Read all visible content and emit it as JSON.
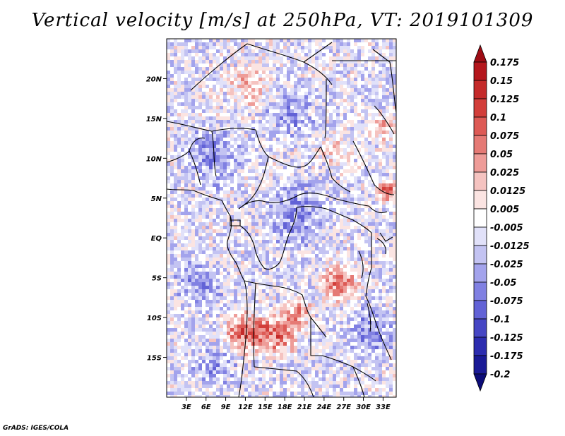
{
  "title": "Vertical velocity [m/s] at 250hPa, VT: 2019101309",
  "credit": "GrADS: IGES/COLA",
  "chart_data": {
    "type": "heatmap",
    "title": "Vertical velocity [m/s] at 250hPa, VT: 2019101309",
    "variable": "Vertical velocity",
    "units": "m/s",
    "level": "250hPa",
    "valid_time": "2019101309",
    "xlim": [
      0,
      35
    ],
    "ylim": [
      -20,
      25
    ],
    "x_ticks": [
      {
        "value": 3,
        "label": "3E"
      },
      {
        "value": 6,
        "label": "6E"
      },
      {
        "value": 9,
        "label": "9E"
      },
      {
        "value": 12,
        "label": "12E"
      },
      {
        "value": 15,
        "label": "15E"
      },
      {
        "value": 18,
        "label": "18E"
      },
      {
        "value": 21,
        "label": "21E"
      },
      {
        "value": 24,
        "label": "24E"
      },
      {
        "value": 27,
        "label": "27E"
      },
      {
        "value": 30,
        "label": "30E"
      },
      {
        "value": 33,
        "label": "33E"
      }
    ],
    "y_ticks": [
      {
        "value": 20,
        "label": "20N"
      },
      {
        "value": 15,
        "label": "15N"
      },
      {
        "value": 10,
        "label": "10N"
      },
      {
        "value": 5,
        "label": "5N"
      },
      {
        "value": 0,
        "label": "EQ"
      },
      {
        "value": -5,
        "label": "5S"
      },
      {
        "value": -10,
        "label": "10S"
      },
      {
        "value": -15,
        "label": "15S"
      }
    ],
    "colorbar": {
      "levels": [
        "0.175",
        "0.15",
        "0.125",
        "0.1",
        "0.075",
        "0.05",
        "0.025",
        "0.0125",
        "0.005",
        "-0.005",
        "-0.0125",
        "-0.025",
        "-0.05",
        "-0.075",
        "-0.1",
        "-0.125",
        "-0.175",
        "-0.2"
      ],
      "colors": [
        "#9e0c14",
        "#b4161c",
        "#c42a2a",
        "#d23e3a",
        "#dd5a55",
        "#e57a75",
        "#ee9c98",
        "#f5c3c0",
        "#fbe4e2",
        "#ffffff",
        "#e1e1f9",
        "#c3c3f2",
        "#a3a3ec",
        "#8080e2",
        "#6262d6",
        "#4646c4",
        "#2c2caf",
        "#1a1a96",
        "#0c0c78"
      ]
    }
  }
}
